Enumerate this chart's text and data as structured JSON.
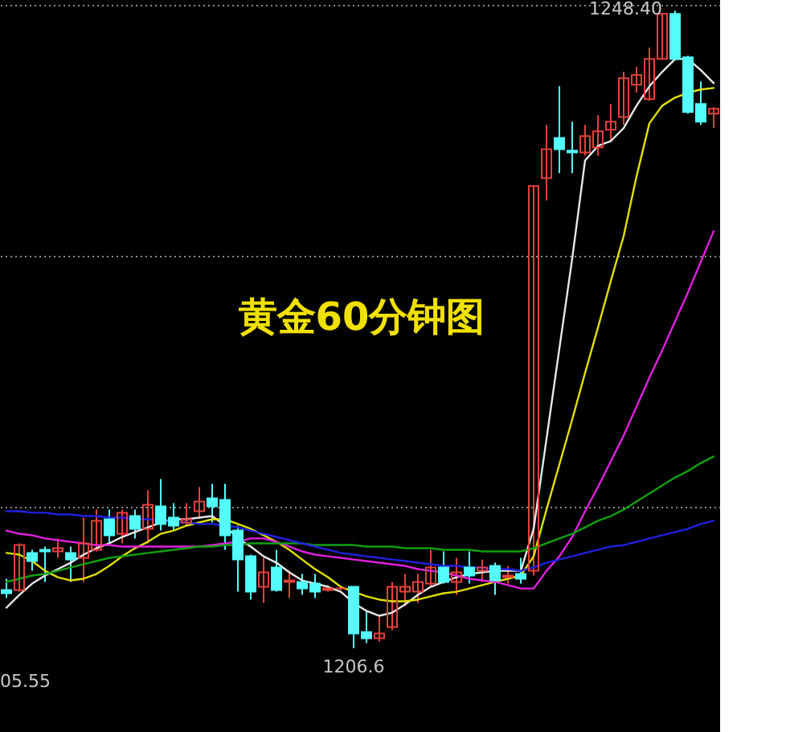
{
  "chart_data": {
    "type": "candlestick",
    "title": "黄金60分钟图",
    "categories": [
      null,
      null,
      null,
      null,
      null,
      null,
      null,
      null,
      null,
      null,
      null,
      null,
      null,
      null,
      null,
      null,
      null,
      null,
      null,
      null,
      null,
      null,
      null,
      null,
      null,
      null,
      null,
      null,
      null,
      null,
      null,
      null,
      null,
      null,
      null,
      null,
      null,
      null,
      null,
      null,
      null,
      null,
      null,
      null,
      null,
      null,
      null,
      null,
      null,
      null,
      null,
      null,
      null,
      null,
      null,
      null
    ],
    "ohlc": [
      [
        1210.41,
        1211.15,
        1209.88,
        1210.2
      ],
      [
        1210.41,
        1213.47,
        1210.3,
        1213.36
      ],
      [
        1212.84,
        1213.05,
        1211.67,
        1212.31
      ],
      [
        1213.05,
        1213.26,
        1210.94,
        1212.94
      ],
      [
        1212.94,
        1213.79,
        1212.52,
        1213.15
      ],
      [
        1212.84,
        1213.26,
        1210.94,
        1212.41
      ],
      [
        1212.52,
        1215.16,
        1210.94,
        1213.47
      ],
      [
        1213.05,
        1215.69,
        1212.94,
        1214.95
      ],
      [
        1215.05,
        1215.69,
        1213.47,
        1214.0
      ],
      [
        1214.1,
        1215.69,
        1213.47,
        1215.48
      ],
      [
        1215.26,
        1215.69,
        1213.79,
        1214.42
      ],
      [
        1214.42,
        1216.95,
        1213.47,
        1216.0
      ],
      [
        1215.9,
        1217.69,
        1214.31,
        1214.74
      ],
      [
        1215.16,
        1216.11,
        1214.31,
        1214.63
      ],
      [
        1214.84,
        1216.11,
        1214.63,
        1215.05
      ],
      [
        1215.58,
        1217.16,
        1215.16,
        1216.21
      ],
      [
        1216.42,
        1217.37,
        1214.84,
        1215.9
      ],
      [
        1216.32,
        1217.37,
        1213.05,
        1214.0
      ],
      [
        1214.31,
        1214.63,
        1210.3,
        1212.41
      ],
      [
        1212.62,
        1212.73,
        1209.78,
        1210.3
      ],
      [
        1210.62,
        1212.52,
        1209.57,
        1211.57
      ],
      [
        1211.89,
        1213.05,
        1210.3,
        1210.41
      ],
      [
        1210.94,
        1211.67,
        1209.88,
        1211.04
      ],
      [
        1210.94,
        1211.46,
        1210.09,
        1210.51
      ],
      [
        1210.83,
        1211.46,
        1209.88,
        1210.3
      ],
      [
        1210.41,
        1210.73,
        1210.3,
        1210.51
      ],
      [
        1210.51,
        1210.62,
        1210.41,
        1210.51
      ],
      [
        1210.62,
        1210.62,
        1206.6,
        1207.56
      ],
      [
        1207.66,
        1209.04,
        1206.93,
        1207.24
      ],
      [
        1207.24,
        1208.72,
        1207.03,
        1207.56
      ],
      [
        1207.98,
        1210.94,
        1207.77,
        1210.62
      ],
      [
        1210.3,
        1211.46,
        1209.35,
        1210.62
      ],
      [
        1210.3,
        1211.46,
        1209.57,
        1210.94
      ],
      [
        1210.83,
        1213.05,
        1210.62,
        1211.89
      ],
      [
        1211.89,
        1212.94,
        1210.83,
        1210.94
      ],
      [
        1210.94,
        1212.52,
        1210.09,
        1211.57
      ],
      [
        1211.89,
        1212.94,
        1210.83,
        1211.36
      ],
      [
        1211.67,
        1212.41,
        1210.94,
        1211.89
      ],
      [
        1211.99,
        1212.2,
        1210.09,
        1211.04
      ],
      [
        1211.25,
        1211.99,
        1210.83,
        1211.36
      ],
      [
        1211.46,
        1212.52,
        1210.83,
        1211.15
      ],
      [
        1211.67,
        1236.9,
        1211.36,
        1236.9
      ],
      [
        1237.42,
        1240.91,
        1235.95,
        1239.32
      ],
      [
        1240.06,
        1243.44,
        1237.74,
        1239.32
      ],
      [
        1239.22,
        1241.12,
        1237.74,
        1239.11
      ],
      [
        1239.11,
        1240.91,
        1238.9,
        1240.17
      ],
      [
        1239.43,
        1241.54,
        1238.9,
        1240.49
      ],
      [
        1240.59,
        1242.28,
        1239.85,
        1241.12
      ],
      [
        1241.43,
        1244.39,
        1240.91,
        1243.97
      ],
      [
        1243.55,
        1244.71,
        1243.02,
        1244.18
      ],
      [
        1242.6,
        1245.97,
        1242.49,
        1245.23
      ],
      [
        1245.23,
        1248.19,
        1245.23,
        1248.19
      ],
      [
        1248.19,
        1248.4,
        1245.13,
        1245.23
      ],
      [
        1245.34,
        1245.45,
        1241.65,
        1241.75
      ],
      [
        1242.28,
        1243.76,
        1240.91,
        1241.12
      ],
      [
        1241.65,
        1242.07,
        1240.7,
        1241.96
      ]
    ],
    "colors": [
      "#54fcfc",
      "#e8403c",
      "#54fcfc",
      "#54fcfc",
      "#e8403c",
      "#54fcfc",
      "#e8403c",
      "#e8403c",
      "#54fcfc",
      "#e8403c",
      "#54fcfc",
      "#e8403c",
      "#54fcfc",
      "#54fcfc",
      "#e8403c",
      "#e8403c",
      "#54fcfc",
      "#54fcfc",
      "#54fcfc",
      "#54fcfc",
      "#e8403c",
      "#54fcfc",
      "#e8403c",
      "#54fcfc",
      "#54fcfc",
      "#e8403c",
      "#e8403c",
      "#54fcfc",
      "#54fcfc",
      "#e8403c",
      "#e8403c",
      "#e8403c",
      "#e8403c",
      "#e8403c",
      "#54fcfc",
      "#e8403c",
      "#54fcfc",
      "#e8403c",
      "#54fcfc",
      "#e8403c",
      "#54fcfc",
      "#e8403c",
      "#e8403c",
      "#54fcfc",
      "#54fcfc",
      "#e8403c",
      "#e8403c",
      "#e8403c",
      "#e8403c",
      "#e8403c",
      "#e8403c",
      "#e8403c",
      "#54fcfc",
      "#54fcfc",
      "#54fcfc",
      "#e8403c"
    ],
    "series": [
      {
        "type": "line",
        "color": "#e8e8e8",
        "values": [
          1209.25,
          1210.09,
          1210.83,
          1211.36,
          1211.78,
          1212.2,
          1212.73,
          1213.15,
          1213.47,
          1213.89,
          1214.21,
          1214.52,
          1214.84,
          1215.05,
          1215.05,
          1215.16,
          1215.26,
          1214.63,
          1213.79,
          1213.26,
          1212.62,
          1212.2,
          1211.57,
          1211.04,
          1210.83,
          1210.62,
          1210.3,
          1209.57,
          1209.04,
          1208.72,
          1208.93,
          1209.46,
          1210.09,
          1210.62,
          1210.94,
          1211.25,
          1211.46,
          1211.57,
          1211.67,
          1211.67,
          1211.67,
          1214.42,
          1220.32,
          1226.24,
          1232.15,
          1238.58,
          1239.53,
          1239.85,
          1240.7,
          1242.17,
          1243.44,
          1244.39,
          1245.23,
          1245.23,
          1244.5,
          1243.65
        ]
      },
      {
        "type": "line",
        "color": "#e0e000",
        "values": [
          1212.84,
          1212.73,
          1212.31,
          1211.67,
          1211.25,
          1211.04,
          1211.15,
          1211.46,
          1211.99,
          1212.62,
          1213.15,
          1213.57,
          1214.1,
          1214.31,
          1214.63,
          1214.84,
          1215.05,
          1215.05,
          1214.74,
          1214.42,
          1214.0,
          1213.57,
          1213.05,
          1212.41,
          1211.78,
          1211.25,
          1210.62,
          1210.3,
          1209.99,
          1209.78,
          1209.67,
          1209.67,
          1209.78,
          1209.99,
          1210.2,
          1210.3,
          1210.51,
          1210.73,
          1210.94,
          1211.15,
          1211.36,
          1212.62,
          1215.69,
          1218.64,
          1221.59,
          1224.65,
          1227.61,
          1230.67,
          1233.62,
          1237.53,
          1241.01,
          1242.17,
          1242.7,
          1243.02,
          1243.23,
          1243.33
        ]
      },
      {
        "type": "line",
        "color": "#e020e0",
        "values": [
          1214.31,
          1214.1,
          1214.0,
          1213.79,
          1213.68,
          1213.57,
          1213.47,
          1213.36,
          1213.36,
          1213.26,
          1213.26,
          1213.26,
          1213.26,
          1213.26,
          1213.26,
          1213.26,
          1213.36,
          1213.47,
          1213.57,
          1213.79,
          1213.79,
          1213.57,
          1213.26,
          1212.94,
          1212.73,
          1212.62,
          1212.52,
          1212.41,
          1212.31,
          1212.2,
          1212.1,
          1211.99,
          1211.78,
          1211.67,
          1211.57,
          1211.36,
          1211.15,
          1211.04,
          1210.94,
          1210.73,
          1210.51,
          1210.51,
          1211.67,
          1212.62,
          1213.89,
          1215.58,
          1217.16,
          1218.85,
          1220.54,
          1222.44,
          1224.34,
          1226.13,
          1228.03,
          1229.93,
          1231.93,
          1233.94
        ]
      },
      {
        "type": "line",
        "color": "#10a010",
        "values": [
          1210.94,
          1211.15,
          1211.36,
          1211.46,
          1211.67,
          1211.89,
          1212.1,
          1212.31,
          1212.52,
          1212.62,
          1212.73,
          1212.84,
          1212.94,
          1213.05,
          1213.15,
          1213.26,
          1213.26,
          1213.36,
          1213.36,
          1213.47,
          1213.47,
          1213.47,
          1213.47,
          1213.47,
          1213.36,
          1213.36,
          1213.36,
          1213.36,
          1213.26,
          1213.26,
          1213.26,
          1213.15,
          1213.15,
          1213.15,
          1213.05,
          1213.05,
          1213.05,
          1212.94,
          1212.94,
          1212.94,
          1212.94,
          1213.15,
          1213.47,
          1213.79,
          1214.1,
          1214.52,
          1214.95,
          1215.26,
          1215.69,
          1216.21,
          1216.74,
          1217.27,
          1217.79,
          1218.21,
          1218.74,
          1219.16
        ]
      },
      {
        "type": "line",
        "color": "#2020e0",
        "values": [
          1215.58,
          1215.58,
          1215.48,
          1215.48,
          1215.37,
          1215.37,
          1215.26,
          1215.26,
          1215.16,
          1215.16,
          1215.05,
          1215.05,
          1214.95,
          1214.84,
          1214.84,
          1214.74,
          1214.74,
          1214.63,
          1214.52,
          1214.31,
          1214.1,
          1213.89,
          1213.68,
          1213.47,
          1213.26,
          1213.05,
          1212.84,
          1212.73,
          1212.62,
          1212.52,
          1212.41,
          1212.31,
          1212.2,
          1212.1,
          1211.99,
          1211.99,
          1211.89,
          1211.89,
          1211.78,
          1211.78,
          1211.67,
          1211.89,
          1212.2,
          1212.41,
          1212.62,
          1212.84,
          1213.05,
          1213.26,
          1213.36,
          1213.57,
          1213.79,
          1214.0,
          1214.21,
          1214.42,
          1214.74,
          1214.95
        ]
      }
    ],
    "ylim": [
      1201.1,
      1249.1
    ],
    "yticks": [
      {
        "value": 1248.82,
        "label": null
      },
      {
        "value": 1232.36,
        "label": null
      },
      {
        "value": 1215.89,
        "label": null
      }
    ],
    "grid": "y",
    "annotations": [
      "1248.40",
      {
        "text": "1206.6",
        "y": 1206.6
      },
      "05.55"
    ]
  }
}
